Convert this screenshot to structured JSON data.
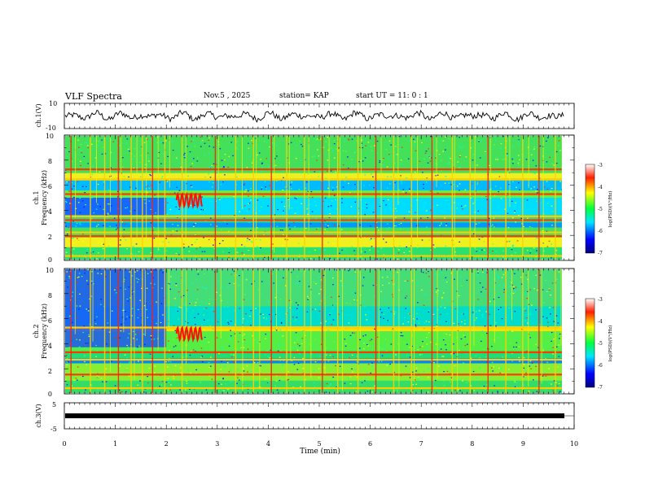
{
  "header": {
    "title": "VLF Spectra",
    "date": "Nov.5 , 2025",
    "station": "station= KAP",
    "start_ut": "start UT =  11: 0 : 1"
  },
  "chart_data": [
    {
      "type": "line",
      "panel": "ch1-waveform",
      "ylabel": "ch.1(V)",
      "ylim": [
        -10,
        10
      ],
      "ytick_labels": [
        "10",
        "-10"
      ],
      "xlim": [
        0,
        9.8
      ],
      "note": "noisy VLF waveform roughly within +/-3 V"
    },
    {
      "type": "heatmap",
      "panel": "ch1-spectrogram",
      "ylabel": "ch.1",
      "ylabel2": "Frequency (kHz)",
      "ylim": [
        0,
        10
      ],
      "ytick_labels": [
        "0",
        "2",
        "4",
        "6",
        "8",
        "10"
      ],
      "xlim": [
        0,
        9.8
      ],
      "colorbar": {
        "label": "log(PSD)(V²/Hz)",
        "range": [
          -7,
          -3
        ],
        "ticks": [
          "-3",
          "-4",
          "-5",
          "-6",
          "-7"
        ]
      },
      "features": {
        "bands_khz": [
          0.3,
          1.9,
          2.2,
          3.2,
          3.5,
          5.3,
          6.5,
          7.3
        ],
        "whistler_times_min": [
          0.12,
          0.5,
          0.78,
          1.05,
          1.3,
          1.52,
          1.72,
          1.96,
          2.3,
          2.95,
          3.35,
          3.7,
          4.05,
          4.35,
          4.7,
          5.05,
          5.35,
          5.75,
          6.1,
          6.45,
          6.8,
          7.2,
          7.6,
          7.95,
          8.3,
          8.65,
          8.98,
          9.3,
          9.62
        ],
        "chorus_burst_time_min": 2.4
      }
    },
    {
      "type": "heatmap",
      "panel": "ch2-spectrogram",
      "ylabel": "ch.2",
      "ylabel2": "Frequency (kHz)",
      "ylim": [
        0,
        10
      ],
      "ytick_labels": [
        "0",
        "2",
        "4",
        "6",
        "8",
        "10"
      ],
      "xlim": [
        0,
        9.8
      ],
      "colorbar": {
        "label": "log(PSD)(V²/Hz)",
        "range": [
          -7,
          -3
        ],
        "ticks": [
          "-3",
          "-4",
          "-5",
          "-6",
          "-7"
        ]
      },
      "features": {
        "bands_khz": [
          0.4,
          1.5,
          2.7,
          3.3,
          5.3
        ],
        "whistler_times_min": [
          0.12,
          0.5,
          0.78,
          1.05,
          1.3,
          1.52,
          1.72,
          1.96,
          2.3,
          2.95,
          3.35,
          3.7,
          4.05,
          4.35,
          4.7,
          5.05,
          5.35,
          5.75,
          6.1,
          6.45,
          6.8,
          7.2,
          7.6,
          7.95,
          8.3,
          8.65,
          8.98,
          9.3,
          9.62
        ],
        "chorus_burst_time_min": 2.4
      }
    },
    {
      "type": "line",
      "panel": "ch3-waveform",
      "ylabel": "ch.3(V)",
      "ylim": [
        -5,
        5
      ],
      "ytick_labels": [
        "5",
        "-5"
      ],
      "xlim": [
        0,
        9.8
      ],
      "note": "flat, nearly constant trace around 0 V"
    }
  ],
  "x_axis": {
    "label": "Time (min)",
    "range": [
      0,
      10
    ],
    "ticks": [
      "0",
      "1",
      "2",
      "3",
      "4",
      "5",
      "6",
      "7",
      "8",
      "9",
      "10"
    ]
  }
}
